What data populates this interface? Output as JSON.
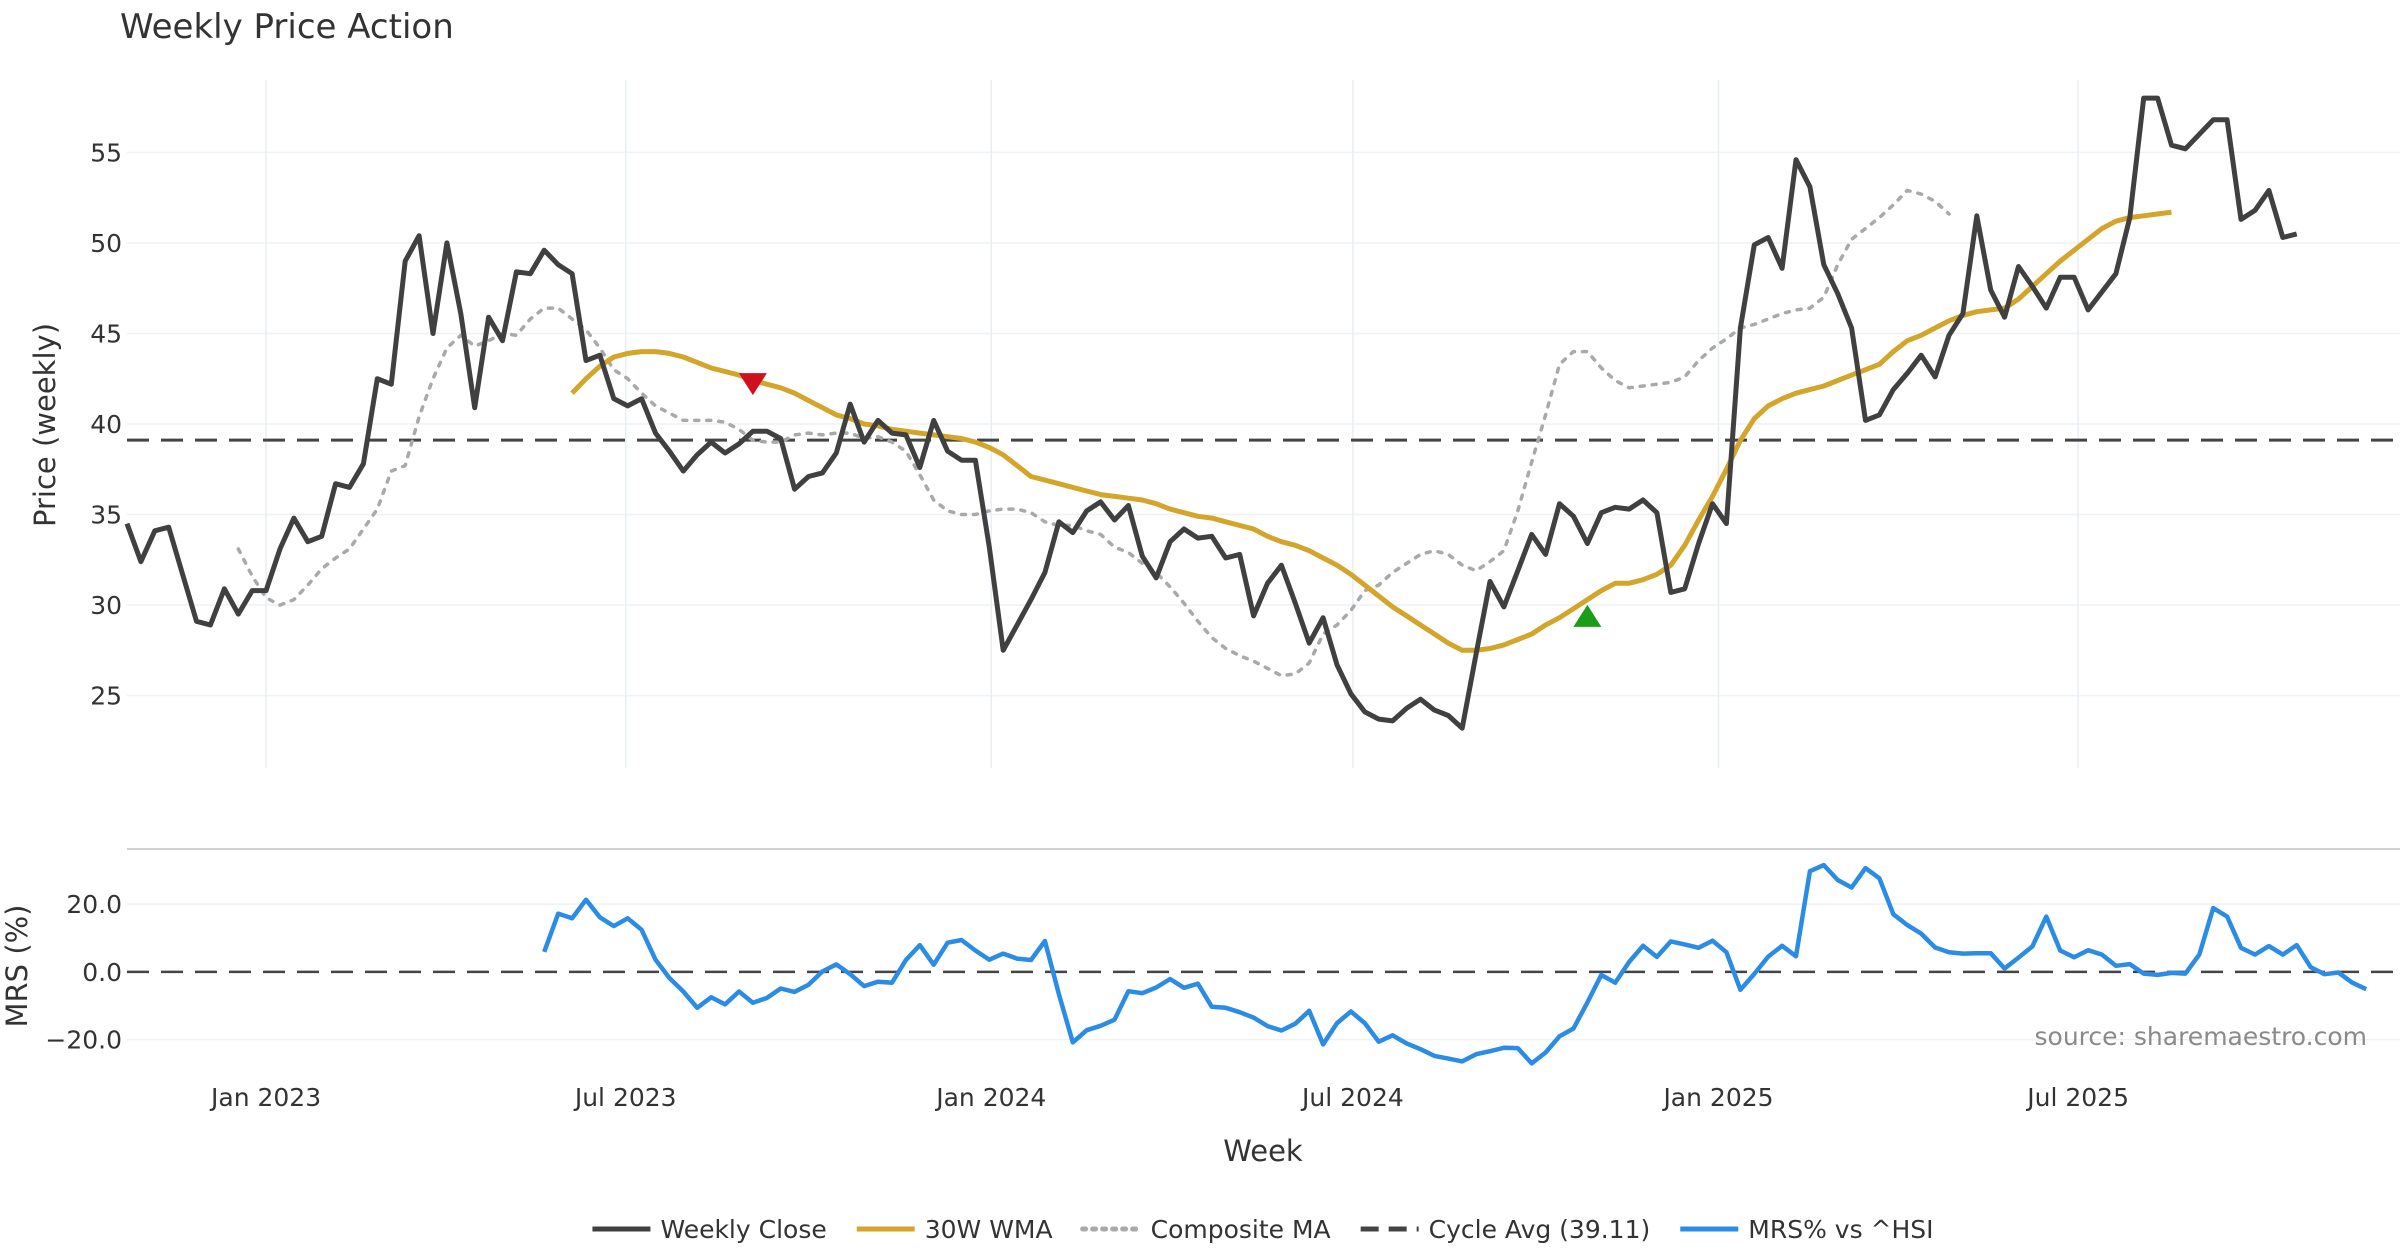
{
  "chart_data": {
    "type": "line",
    "title": "Weekly Price Action",
    "source": "source: sharemaestro.com",
    "xlabel": "Week",
    "x_ticks": [
      {
        "label": "Jan 2023",
        "date": "2023-01-01"
      },
      {
        "label": "Jul 2023",
        "date": "2023-07-01"
      },
      {
        "label": "Jan 2024",
        "date": "2024-01-01"
      },
      {
        "label": "Jul 2024",
        "date": "2024-07-01"
      },
      {
        "label": "Jan 2025",
        "date": "2025-01-01"
      },
      {
        "label": "Jul 2025",
        "date": "2025-07-01"
      }
    ],
    "x_range": [
      "2022-10-23",
      "2025-12-10"
    ],
    "price_panel": {
      "ylabel": "Price (weekly)",
      "ylim": [
        21,
        59
      ],
      "y_ticks": [
        "25",
        "30",
        "35",
        "40",
        "45",
        "50",
        "55"
      ],
      "series": [
        {
          "name": "Weekly Close",
          "color": "#404040",
          "style": "solid",
          "start": "2022-10-23",
          "values": [
            34.5,
            32.4,
            34.1,
            34.3,
            31.7,
            29.1,
            28.9,
            30.9,
            29.5,
            30.8,
            30.8,
            33.1,
            34.8,
            33.5,
            33.8,
            36.7,
            36.5,
            37.8,
            42.5,
            42.2,
            49.0,
            50.4,
            45.0,
            50.0,
            46.1,
            40.9,
            45.9,
            44.6,
            48.4,
            48.3,
            49.6,
            48.8,
            48.3,
            43.5,
            43.8,
            41.4,
            41.0,
            41.4,
            39.5,
            38.5,
            37.4,
            38.3,
            39.0,
            38.4,
            38.9,
            39.6,
            39.6,
            39.2,
            36.4,
            37.1,
            37.3,
            38.4,
            41.1,
            39.0,
            40.2,
            39.5,
            39.4,
            37.6,
            40.2,
            38.5,
            38.0,
            38.0,
            33.2,
            27.5,
            28.9,
            30.3,
            31.8,
            34.6,
            34.0,
            35.2,
            35.7,
            34.7,
            35.5,
            32.7,
            31.5,
            33.5,
            34.2,
            33.7,
            33.8,
            32.6,
            32.8,
            29.4,
            31.2,
            32.2,
            30.1,
            27.9,
            29.3,
            26.7,
            25.1,
            24.1,
            23.7,
            23.6,
            24.3,
            24.8,
            24.2,
            23.9,
            23.2,
            27.3,
            31.3,
            29.9,
            31.9,
            33.9,
            32.8,
            35.6,
            34.9,
            33.4,
            35.1,
            35.4,
            35.3,
            35.8,
            35.1,
            30.7,
            30.9,
            33.4,
            35.6,
            34.5,
            45.3,
            49.9,
            50.3,
            48.6,
            54.6,
            53.1,
            48.8,
            47.2,
            45.3,
            40.2,
            40.5,
            41.9,
            42.8,
            43.8,
            42.6,
            44.9,
            46.1,
            51.5,
            47.4,
            45.9,
            48.7,
            47.6,
            46.4,
            48.1,
            48.1,
            46.3,
            47.3,
            48.3,
            51.4,
            58.0,
            58.0,
            55.4,
            55.2,
            56.0,
            56.8,
            56.8,
            51.3,
            51.8,
            52.9,
            50.3,
            50.5
          ]
        },
        {
          "name": "30W WMA",
          "color": "#d4a52b",
          "style": "solid",
          "start": "2023-06-04",
          "values": [
            41.7,
            42.5,
            43.2,
            43.7,
            43.9,
            44.0,
            44.0,
            43.9,
            43.7,
            43.4,
            43.1,
            42.9,
            42.7,
            42.4,
            42.2,
            42.0,
            41.7,
            41.3,
            40.9,
            40.5,
            40.3,
            40.0,
            39.9,
            39.7,
            39.6,
            39.5,
            39.4,
            39.3,
            39.2,
            39.0,
            38.7,
            38.3,
            37.7,
            37.1,
            36.9,
            36.7,
            36.5,
            36.3,
            36.1,
            36.0,
            35.9,
            35.8,
            35.6,
            35.3,
            35.1,
            34.9,
            34.8,
            34.6,
            34.4,
            34.2,
            33.8,
            33.5,
            33.3,
            33.0,
            32.6,
            32.2,
            31.7,
            31.1,
            30.5,
            29.9,
            29.4,
            28.9,
            28.4,
            27.9,
            27.5,
            27.5,
            27.6,
            27.8,
            28.1,
            28.4,
            28.9,
            29.3,
            29.8,
            30.3,
            30.8,
            31.2,
            31.2,
            31.4,
            31.7,
            32.2,
            33.3,
            34.7,
            36.0,
            37.5,
            39.1,
            40.3,
            41.0,
            41.4,
            41.7,
            41.9,
            42.1,
            42.4,
            42.7,
            43.0,
            43.3,
            44.0,
            44.6,
            44.9,
            45.3,
            45.7,
            46.0,
            46.2,
            46.3,
            46.4,
            46.9,
            47.6,
            48.3,
            49.0,
            49.6,
            50.2,
            50.8,
            51.2,
            51.4,
            51.5,
            51.6,
            51.7
          ]
        },
        {
          "name": "Composite MA",
          "color": "#a9a9a9",
          "style": "dotted",
          "start": "2022-12-18",
          "values": [
            33.1,
            31.6,
            30.4,
            30.0,
            30.3,
            31.1,
            32.0,
            32.6,
            33.1,
            34.2,
            35.3,
            37.4,
            37.7,
            40.4,
            42.5,
            44.2,
            44.9,
            44.3,
            44.6,
            45.0,
            44.9,
            45.8,
            46.4,
            46.4,
            45.8,
            45.2,
            44.2,
            43.0,
            42.5,
            41.7,
            41.0,
            40.6,
            40.2,
            40.2,
            40.2,
            40.1,
            39.7,
            39.1,
            39.0,
            39.0,
            39.4,
            39.5,
            39.4,
            39.5,
            39.5,
            39.2,
            39.3,
            39.0,
            38.5,
            37.2,
            35.8,
            35.2,
            35.0,
            35.0,
            35.2,
            35.3,
            35.3,
            35.1,
            34.6,
            34.4,
            34.4,
            34.1,
            33.9,
            33.2,
            32.9,
            32.3,
            31.8,
            31.0,
            30.1,
            29.1,
            28.2,
            27.6,
            27.2,
            26.9,
            26.5,
            26.1,
            26.2,
            26.8,
            28.4,
            28.9,
            29.7,
            30.8,
            31.1,
            31.8,
            32.3,
            32.8,
            33.0,
            32.8,
            32.2,
            31.9,
            32.4,
            33.0,
            35.2,
            37.9,
            40.5,
            43.3,
            44.0,
            44.0,
            43.1,
            42.4,
            42.0,
            42.1,
            42.2,
            42.3,
            42.6,
            43.5,
            44.2,
            44.7,
            45.3,
            45.5,
            45.8,
            46.1,
            46.3,
            46.4,
            47.0,
            48.8,
            50.2,
            50.8,
            51.4,
            52.1,
            52.9,
            52.7,
            52.3,
            51.6
          ]
        },
        {
          "name": "Cycle Avg (39.11)",
          "color": "#444444",
          "style": "dashed",
          "value": 39.11
        }
      ],
      "markers": [
        {
          "type": "sell",
          "shape": "triangle-down",
          "color": "#d0101d",
          "date": "2023-09-03",
          "value": 42.2
        },
        {
          "type": "buy",
          "shape": "triangle-up",
          "color": "#1a9e1a",
          "date": "2024-10-27",
          "value": 29.4
        }
      ]
    },
    "mrs_panel": {
      "ylabel": "MRS (%)",
      "ylim": [
        -26,
        33
      ],
      "y_ticks": [
        "20.0",
        "0.0",
        "−20.0"
      ],
      "series": [
        {
          "name": "MRS% vs ^HSI",
          "color": "#2b8ce6",
          "style": "solid",
          "start": "2023-05-21",
          "values": [
            5.9,
            17.2,
            15.8,
            21.3,
            16.1,
            13.5,
            15.8,
            12.4,
            3.6,
            -1.8,
            -5.8,
            -10.6,
            -7.5,
            -9.6,
            -5.8,
            -9.1,
            -7.7,
            -4.9,
            -5.9,
            -3.8,
            0.1,
            2.2,
            -0.7,
            -4.2,
            -2.9,
            -3.2,
            3.5,
            7.9,
            2.1,
            8.6,
            9.4,
            6.3,
            3.6,
            5.4,
            3.9,
            3.5,
            9.1,
            -6.6,
            -20.8,
            -17.2,
            -15.9,
            -14.1,
            -5.7,
            -6.3,
            -4.6,
            -2.1,
            -4.7,
            -3.5,
            -10.3,
            -10.6,
            -11.9,
            -13.5,
            -16.0,
            -17.3,
            -15.3,
            -11.5,
            -21.4,
            -15.1,
            -11.7,
            -15.1,
            -20.6,
            -18.7,
            -21.1,
            -22.8,
            -24.8,
            -25.6,
            -26.4,
            -24.3,
            -23.4,
            -22.4,
            -22.5,
            -27.0,
            -23.8,
            -19.0,
            -16.7,
            -9.0,
            -0.9,
            -3.2,
            2.9,
            7.7,
            4.4,
            9.0,
            8.1,
            7.1,
            9.2,
            5.8,
            -5.3,
            -0.6,
            4.5,
            7.7,
            4.6,
            29.7,
            31.5,
            27.1,
            24.9,
            30.6,
            27.6,
            17.0,
            13.8,
            11.3,
            7.2,
            5.8,
            5.4,
            5.5,
            5.5,
            1.0,
            4.2,
            7.5,
            16.3,
            6.3,
            4.3,
            6.4,
            5.1,
            1.8,
            2.3,
            -0.5,
            -0.9,
            -0.3,
            -0.5,
            5.1,
            18.8,
            16.3,
            7.1,
            5.1,
            7.6,
            5.1,
            7.9,
            1.4,
            -0.7,
            -0.2,
            -3.2,
            -5.1
          ]
        }
      ],
      "reference_line": {
        "value": 0,
        "style": "dashed",
        "color": "#444444"
      }
    },
    "legend": {
      "position": "bottom-center",
      "items": [
        {
          "label": "Weekly Close",
          "color": "#404040",
          "style": "solid"
        },
        {
          "label": "30W WMA",
          "color": "#d4a52b",
          "style": "solid"
        },
        {
          "label": "Composite MA",
          "color": "#a9a9a9",
          "style": "dotted"
        },
        {
          "label": "Cycle Avg (39.11)",
          "color": "#444444",
          "style": "dashed"
        },
        {
          "label": "MRS% vs ^HSI",
          "color": "#2b8ce6",
          "style": "solid"
        }
      ]
    }
  }
}
